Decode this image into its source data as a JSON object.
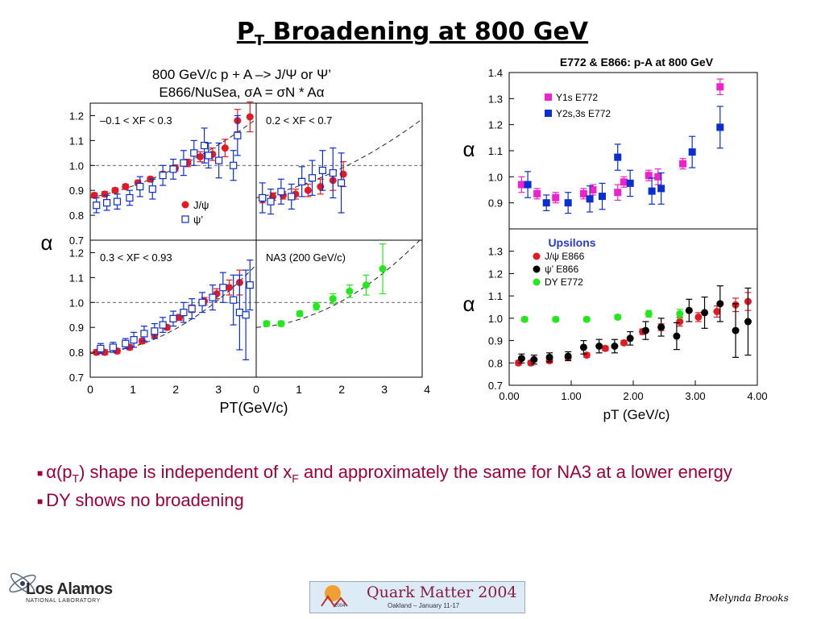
{
  "slide": {
    "title_main": "P",
    "title_sub": "T",
    "title_rest": " Broadening at 800 GeV",
    "bullets": [
      {
        "parts": [
          "α(p",
          "T",
          ") shape is independent of x",
          "F",
          " and approximately the same for NA3 at a lower energy"
        ]
      },
      {
        "text": "DY shows no broadening"
      }
    ],
    "author": "Melynda Brooks",
    "logo_left": {
      "line1": "Los Alamos",
      "line2": "NATIONAL LABORATORY"
    },
    "logo_right": {
      "title": "Quark Matter 2004",
      "subtitle": "Oakland – January 11-17",
      "year": "2004"
    }
  },
  "colors": {
    "red": "#e01b24",
    "blue": "#0a2fd0",
    "black": "#000000",
    "green": "#22e81c",
    "magenta": "#ee22cc",
    "bullet": "#a0003a"
  },
  "chart_data": [
    {
      "type": "scatter",
      "title": "800 GeV/c p + A –> J/Ψ or Ψ’",
      "subtitle": "E866/NuSea, σA = σN * Aα",
      "xlabel": "PT(GeV/c)",
      "ylabel": "α",
      "xticks": [
        "0",
        "1",
        "2",
        "3",
        "0",
        "1",
        "2",
        "3",
        "4"
      ],
      "yticks": [
        "0.7",
        "0.8",
        "0.9",
        "1.0",
        "1.1",
        "1.2"
      ],
      "legend": [
        "J/ψ",
        "ψ’"
      ],
      "panels": [
        {
          "label": "–0.1 < XF < 0.3",
          "xlim": [
            0,
            4
          ],
          "ylim": [
            0.7,
            1.25
          ],
          "series": [
            {
              "name": "J/ψ",
              "marker": "circle",
              "color": "red",
              "points": [
                [
                  0.1,
                  0.88,
                  0.01
                ],
                [
                  0.35,
                  0.885,
                  0.01
                ],
                [
                  0.6,
                  0.9,
                  0.01
                ],
                [
                  0.85,
                  0.915,
                  0.01
                ],
                [
                  1.15,
                  0.93,
                  0.01
                ],
                [
                  1.45,
                  0.945,
                  0.01
                ],
                [
                  1.75,
                  0.965,
                  0.01
                ],
                [
                  2.05,
                  0.99,
                  0.012
                ],
                [
                  2.35,
                  1.01,
                  0.015
                ],
                [
                  2.65,
                  1.035,
                  0.02
                ],
                [
                  2.95,
                  1.045,
                  0.025
                ],
                [
                  3.25,
                  1.07,
                  0.035
                ],
                [
                  3.55,
                  1.18,
                  0.045
                ],
                [
                  3.85,
                  1.195,
                  0.06
                ]
              ]
            },
            {
              "name": "ψ’",
              "marker": "square",
              "color": "blue",
              "points": [
                [
                  0.15,
                  0.84,
                  0.03
                ],
                [
                  0.4,
                  0.85,
                  0.03
                ],
                [
                  0.65,
                  0.855,
                  0.03
                ],
                [
                  0.95,
                  0.87,
                  0.03
                ],
                [
                  1.2,
                  0.915,
                  0.04
                ],
                [
                  1.5,
                  0.905,
                  0.04
                ],
                [
                  1.75,
                  0.96,
                  0.04
                ],
                [
                  2.0,
                  0.985,
                  0.04
                ],
                [
                  2.25,
                  1.01,
                  0.05
                ],
                [
                  2.5,
                  1.05,
                  0.05
                ],
                [
                  2.75,
                  1.08,
                  0.07
                ],
                [
                  2.85,
                  1.04,
                  0.05
                ],
                [
                  3.1,
                  1.02,
                  0.07
                ],
                [
                  3.45,
                  1.0,
                  0.06
                ],
                [
                  3.55,
                  1.12,
                  0.08
                ]
              ]
            }
          ]
        },
        {
          "label": "0.2 < XF < 0.7",
          "xlim": [
            0,
            4
          ],
          "ylim": [
            0.7,
            1.25
          ],
          "series": [
            {
              "name": "J/ψ",
              "marker": "circle",
              "color": "red",
              "points": [
                [
                  0.15,
                  0.865,
                  0.015
                ],
                [
                  0.4,
                  0.875,
                  0.015
                ],
                [
                  0.65,
                  0.88,
                  0.015
                ],
                [
                  0.95,
                  0.885,
                  0.02
                ],
                [
                  1.25,
                  0.9,
                  0.025
                ],
                [
                  1.55,
                  0.915,
                  0.03
                ],
                [
                  1.85,
                  0.94,
                  0.04
                ],
                [
                  2.1,
                  0.965,
                  0.05
                ]
              ]
            },
            {
              "name": "ψ’",
              "marker": "square",
              "color": "blue",
              "points": [
                [
                  0.15,
                  0.87,
                  0.06
                ],
                [
                  0.35,
                  0.855,
                  0.05
                ],
                [
                  0.6,
                  0.895,
                  0.05
                ],
                [
                  0.85,
                  0.875,
                  0.05
                ],
                [
                  1.1,
                  0.935,
                  0.06
                ],
                [
                  1.35,
                  0.95,
                  0.07
                ],
                [
                  1.6,
                  0.98,
                  0.08
                ],
                [
                  1.85,
                  0.97,
                  0.1
                ],
                [
                  2.05,
                  0.93,
                  0.12
                ]
              ]
            }
          ]
        },
        {
          "label": "0.3 < XF < 0.93",
          "xlim": [
            0,
            4
          ],
          "ylim": [
            0.7,
            1.25
          ],
          "series": [
            {
              "name": "J/ψ",
              "marker": "circle",
              "color": "red",
              "points": [
                [
                  0.15,
                  0.8,
                  0.01
                ],
                [
                  0.35,
                  0.8,
                  0.01
                ],
                [
                  0.65,
                  0.805,
                  0.01
                ],
                [
                  0.95,
                  0.82,
                  0.01
                ],
                [
                  1.25,
                  0.845,
                  0.01
                ],
                [
                  1.55,
                  0.87,
                  0.01
                ],
                [
                  1.85,
                  0.9,
                  0.01
                ],
                [
                  2.15,
                  0.94,
                  0.012
                ],
                [
                  2.45,
                  0.975,
                  0.015
                ],
                [
                  2.75,
                  1.005,
                  0.015
                ],
                [
                  3.05,
                  1.035,
                  0.02
                ],
                [
                  3.35,
                  1.06,
                  0.03
                ],
                [
                  3.6,
                  1.08,
                  0.05
                ]
              ]
            },
            {
              "name": "ψ’",
              "marker": "square",
              "color": "blue",
              "points": [
                [
                  0.25,
                  0.815,
                  0.02
                ],
                [
                  0.55,
                  0.82,
                  0.02
                ],
                [
                  0.85,
                  0.835,
                  0.02
                ],
                [
                  1.05,
                  0.85,
                  0.03
                ],
                [
                  1.3,
                  0.875,
                  0.03
                ],
                [
                  1.55,
                  0.885,
                  0.03
                ],
                [
                  1.75,
                  0.91,
                  0.03
                ],
                [
                  2.0,
                  0.935,
                  0.03
                ],
                [
                  2.25,
                  0.96,
                  0.04
                ],
                [
                  2.45,
                  0.975,
                  0.04
                ],
                [
                  2.7,
                  1.0,
                  0.04
                ],
                [
                  2.95,
                  1.02,
                  0.05
                ],
                [
                  3.2,
                  1.06,
                  0.06
                ],
                [
                  3.45,
                  1.01,
                  0.1
                ],
                [
                  3.6,
                  0.96,
                  0.15
                ],
                [
                  3.75,
                  0.95,
                  0.18
                ],
                [
                  3.85,
                  1.07,
                  0.1
                ]
              ]
            }
          ]
        },
        {
          "label": "NA3 (200 GeV/c)",
          "xlim": [
            0,
            4
          ],
          "ylim": [
            0.7,
            1.25
          ],
          "series": [
            {
              "name": "NA3",
              "marker": "circle",
              "color": "green",
              "points": [
                [
                  0.25,
                  0.915,
                  0.01
                ],
                [
                  0.6,
                  0.915,
                  0.01
                ],
                [
                  1.05,
                  0.955,
                  0.01
                ],
                [
                  1.45,
                  0.985,
                  0.015
                ],
                [
                  1.85,
                  1.015,
                  0.02
                ],
                [
                  2.25,
                  1.045,
                  0.025
                ],
                [
                  2.65,
                  1.07,
                  0.04
                ],
                [
                  3.05,
                  1.135,
                  0.1
                ]
              ]
            }
          ]
        }
      ]
    },
    {
      "type": "scatter",
      "title": "E772 & E866: p-A at 800 GeV",
      "ylabel": "α",
      "xlim": [
        0,
        4
      ],
      "ylim": [
        0.8,
        1.4
      ],
      "yticks": [
        "0.9",
        "1.0",
        "1.1",
        "1.2",
        "1.3",
        "1.4"
      ],
      "series": [
        {
          "name": "Y1s E772",
          "marker": "square",
          "color": "magenta",
          "points": [
            [
              0.2,
              0.97,
              0.03
            ],
            [
              0.45,
              0.935,
              0.02
            ],
            [
              0.75,
              0.92,
              0.02
            ],
            [
              1.2,
              0.935,
              0.02
            ],
            [
              1.35,
              0.95,
              0.02
            ],
            [
              1.75,
              0.94,
              0.03
            ],
            [
              1.85,
              0.98,
              0.02
            ],
            [
              2.25,
              1.005,
              0.02
            ],
            [
              2.4,
              1.0,
              0.03
            ],
            [
              2.8,
              1.05,
              0.02
            ],
            [
              3.4,
              1.345,
              0.03
            ]
          ]
        },
        {
          "name": "Y2s,3s E772",
          "marker": "square",
          "color": "blue",
          "points": [
            [
              0.3,
              0.97,
              0.05
            ],
            [
              0.6,
              0.9,
              0.03
            ],
            [
              0.95,
              0.9,
              0.04
            ],
            [
              1.3,
              0.915,
              0.05
            ],
            [
              1.5,
              0.925,
              0.05
            ],
            [
              1.75,
              1.075,
              0.05
            ],
            [
              1.95,
              0.975,
              0.05
            ],
            [
              2.3,
              0.945,
              0.05
            ],
            [
              2.45,
              0.955,
              0.06
            ],
            [
              2.95,
              1.095,
              0.06
            ],
            [
              3.4,
              1.19,
              0.08
            ]
          ]
        }
      ]
    },
    {
      "type": "scatter",
      "label": "Upsilons",
      "xlabel": "pT (GeV/c)",
      "ylabel": "α",
      "xlim": [
        0,
        4
      ],
      "ylim": [
        0.7,
        1.4
      ],
      "xticks": [
        "0.00",
        "1.00",
        "2.00",
        "3.00",
        "4.00"
      ],
      "yticks": [
        "0.7",
        "0.8",
        "0.9",
        "1.0",
        "1.1",
        "1.2",
        "1.3"
      ],
      "series": [
        {
          "name": "J/ψ E866",
          "marker": "circle",
          "color": "red",
          "points": [
            [
              0.15,
              0.8,
              0.01
            ],
            [
              0.35,
              0.8,
              0.01
            ],
            [
              0.65,
              0.81,
              0.01
            ],
            [
              0.95,
              0.825,
              0.01
            ],
            [
              1.25,
              0.835,
              0.01
            ],
            [
              1.55,
              0.865,
              0.01
            ],
            [
              1.85,
              0.89,
              0.01
            ],
            [
              2.15,
              0.94,
              0.012
            ],
            [
              2.45,
              0.96,
              0.015
            ],
            [
              2.75,
              0.985,
              0.02
            ],
            [
              3.05,
              1.005,
              0.02
            ],
            [
              3.35,
              1.03,
              0.025
            ],
            [
              3.65,
              1.06,
              0.03
            ],
            [
              3.85,
              1.075,
              0.04
            ]
          ]
        },
        {
          "name": "ψ’ E866",
          "marker": "circle",
          "color": "black",
          "points": [
            [
              0.2,
              0.82,
              0.02
            ],
            [
              0.4,
              0.815,
              0.02
            ],
            [
              0.65,
              0.825,
              0.02
            ],
            [
              0.95,
              0.83,
              0.02
            ],
            [
              1.2,
              0.87,
              0.03
            ],
            [
              1.45,
              0.875,
              0.03
            ],
            [
              1.7,
              0.875,
              0.03
            ],
            [
              1.95,
              0.91,
              0.03
            ],
            [
              2.2,
              0.945,
              0.04
            ],
            [
              2.45,
              0.96,
              0.04
            ],
            [
              2.7,
              0.92,
              0.06
            ],
            [
              2.9,
              1.035,
              0.05
            ],
            [
              3.15,
              1.025,
              0.07
            ],
            [
              3.4,
              1.065,
              0.08
            ],
            [
              3.65,
              0.945,
              0.12
            ],
            [
              3.85,
              0.985,
              0.15
            ]
          ]
        },
        {
          "name": "DY E772",
          "marker": "circle",
          "color": "green",
          "points": [
            [
              0.25,
              0.995,
              0.01
            ],
            [
              0.75,
              0.995,
              0.01
            ],
            [
              1.25,
              0.995,
              0.01
            ],
            [
              1.75,
              1.005,
              0.01
            ],
            [
              2.25,
              1.02,
              0.015
            ],
            [
              2.75,
              1.02,
              0.02
            ]
          ]
        }
      ]
    }
  ]
}
